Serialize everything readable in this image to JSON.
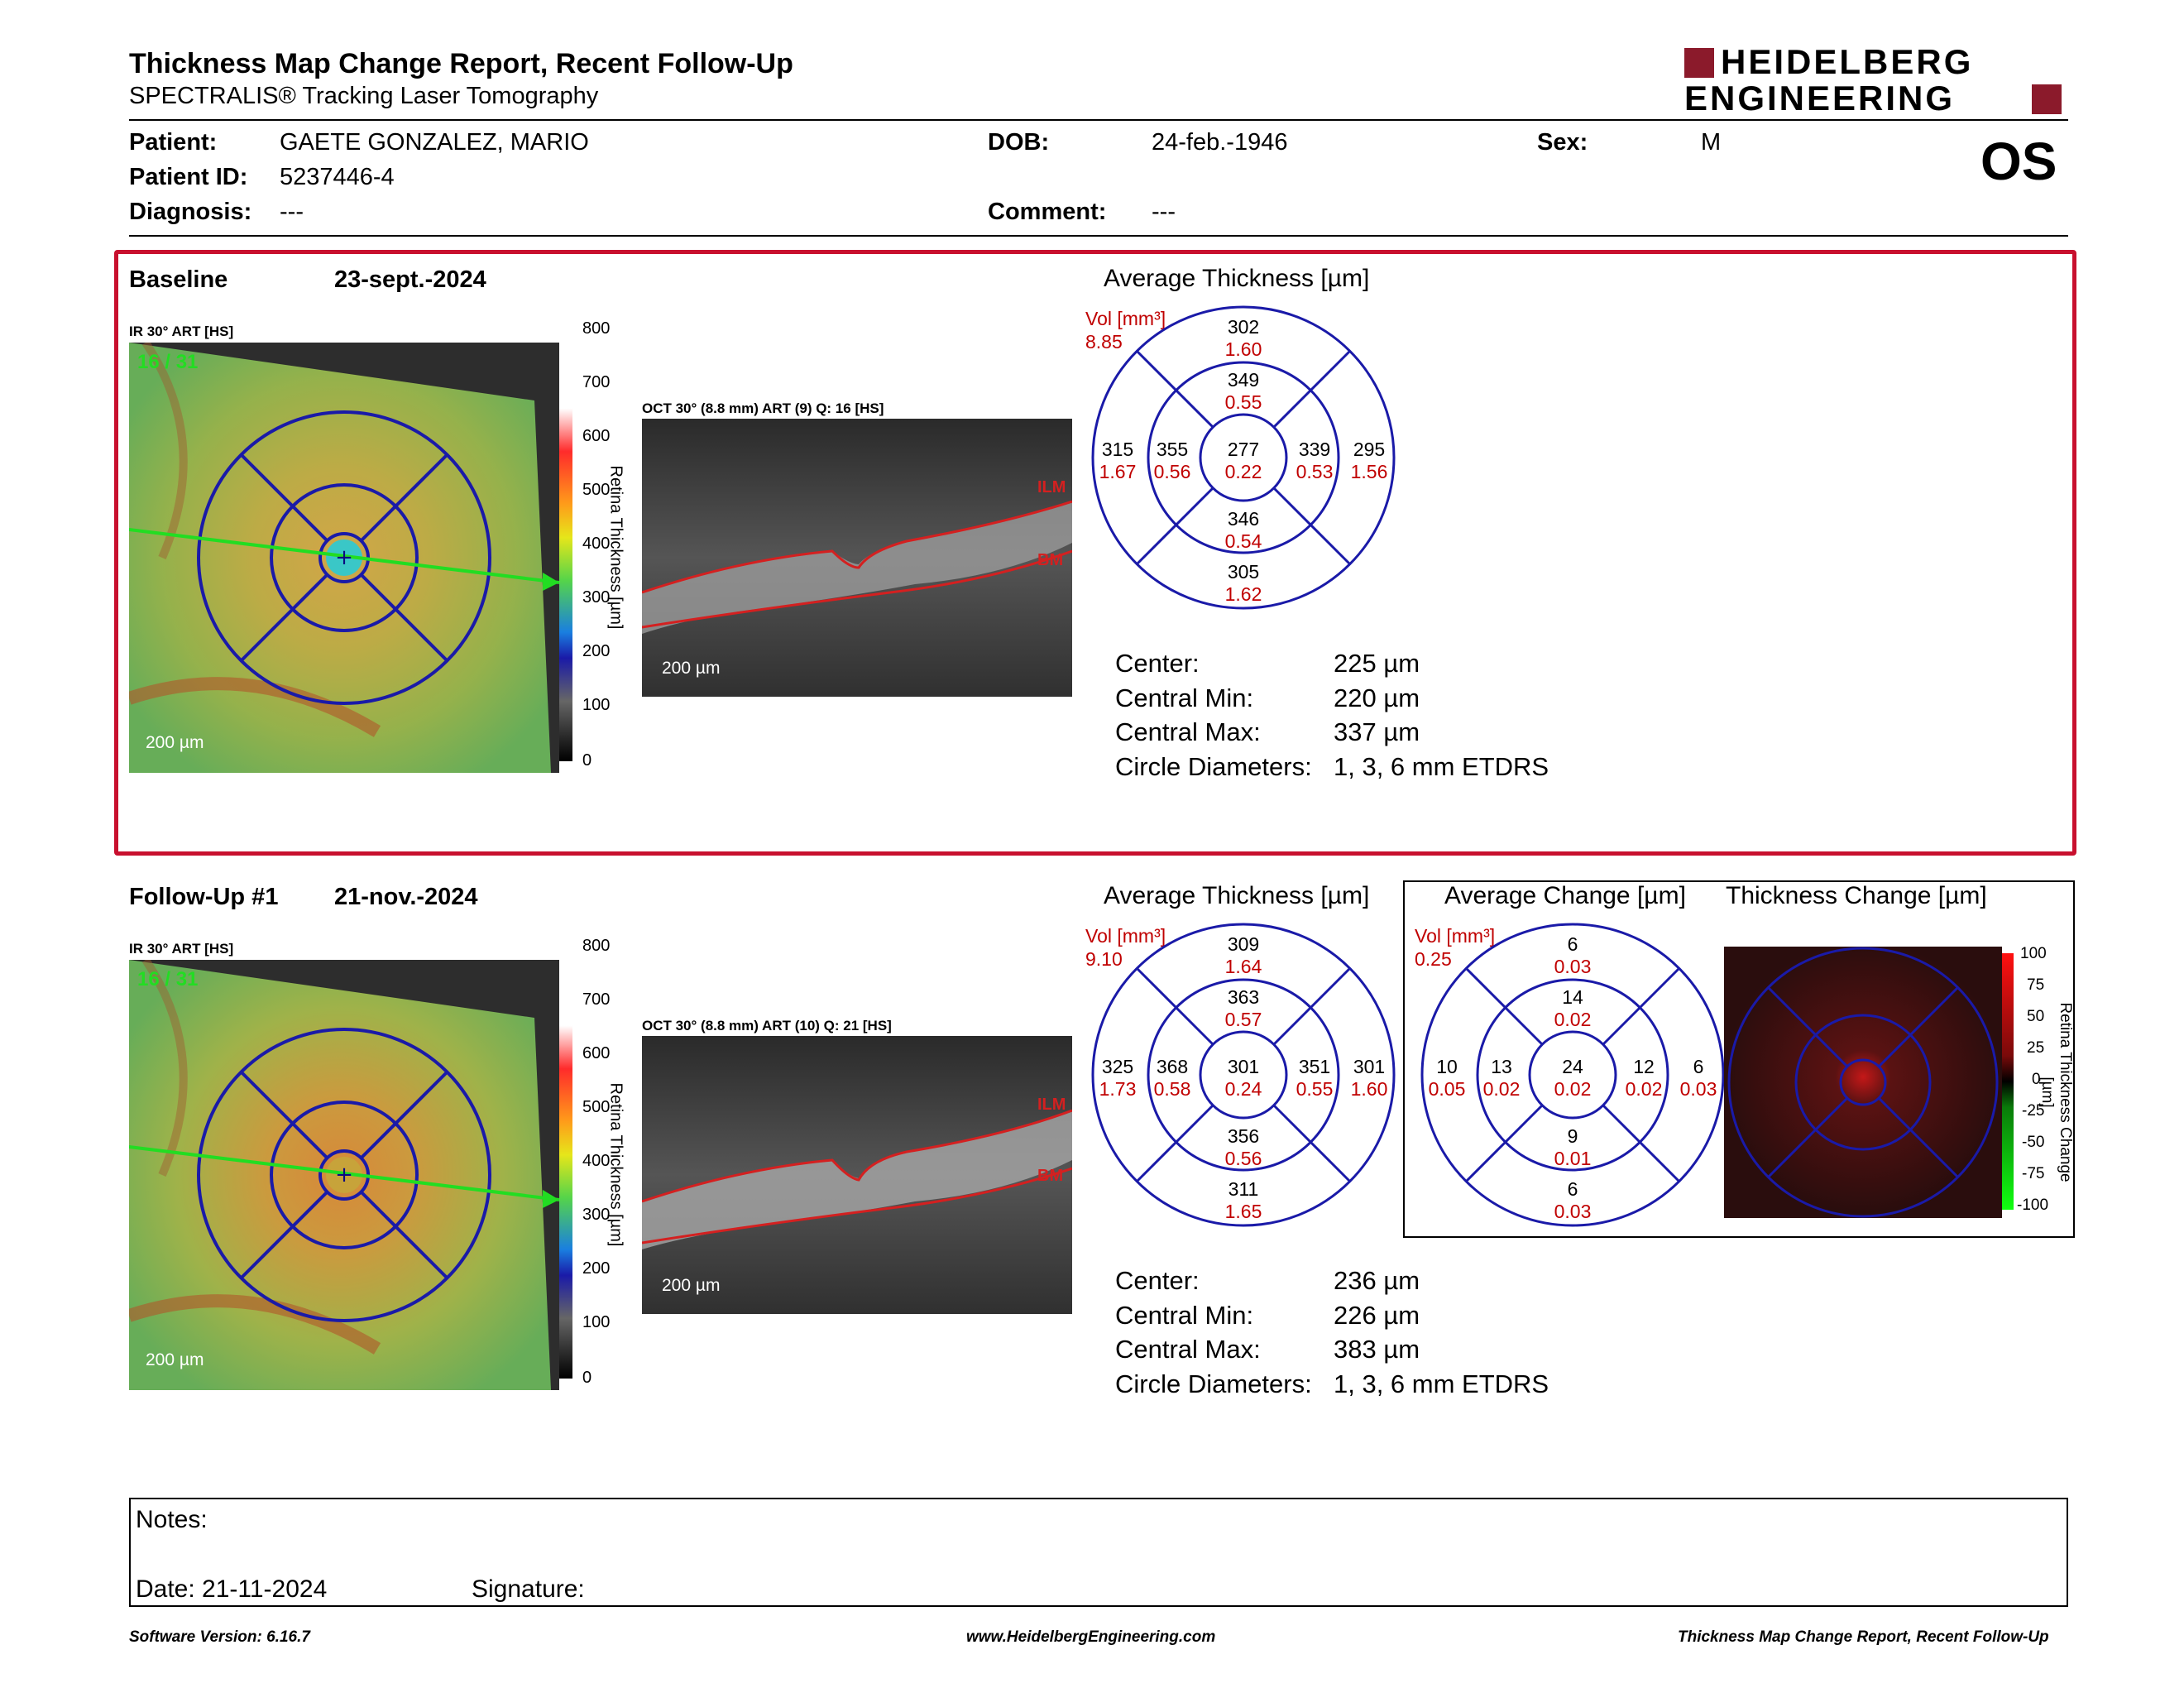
{
  "header": {
    "title": "Thickness Map Change Report, Recent Follow-Up",
    "subtitle": "SPECTRALIS® Tracking Laser Tomography",
    "logo_line1": "HEIDELBERG",
    "logo_line2": "ENGINEERING",
    "eye": "OS"
  },
  "patient": {
    "patient_label": "Patient:",
    "patient_value": "GAETE GONZALEZ, MARIO",
    "id_label": "Patient ID:",
    "id_value": "5237446-4",
    "diagnosis_label": "Diagnosis:",
    "diagnosis_value": "---",
    "dob_label": "DOB:",
    "dob_value": "24-feb.-1946",
    "comment_label": "Comment:",
    "comment_value": "---",
    "sex_label": "Sex:",
    "sex_value": "M"
  },
  "colors": {
    "frame_red": "#c8102e",
    "value_red": "#c00000",
    "grid_blue": "#1a1aa8",
    "logo_red": "#8b1a2b"
  },
  "baseline": {
    "label": "Baseline",
    "date": "23-sept.-2024",
    "ir_label": "IR 30° ART [HS]",
    "ir_overlay": "16 / 31",
    "scale": "200 µm",
    "colorbar_ticks": [
      "800",
      "700",
      "600",
      "500",
      "400",
      "300",
      "200",
      "100",
      "0"
    ],
    "colorbar_title": "Retina Thickness [µm]",
    "oct_label": "OCT 30° (8.8 mm) ART (9) Q: 16 [HS]",
    "oct_ilm": "ILM",
    "oct_bm": "BM",
    "oct_scale": "200 µm",
    "avg_title": "Average Thickness [µm]",
    "vol_label": "Vol [mm³]",
    "vol_value": "8.85",
    "grid": {
      "center": [
        "277",
        "0.22"
      ],
      "in_top": [
        "349",
        "0.55"
      ],
      "in_bottom": [
        "346",
        "0.54"
      ],
      "in_left": [
        "355",
        "0.56"
      ],
      "in_right": [
        "339",
        "0.53"
      ],
      "out_top": [
        "302",
        "1.60"
      ],
      "out_bottom": [
        "305",
        "1.62"
      ],
      "out_left": [
        "315",
        "1.67"
      ],
      "out_right": [
        "295",
        "1.56"
      ]
    },
    "stats": [
      {
        "label": "Center:",
        "value": "225 µm"
      },
      {
        "label": "Central Min:",
        "value": "220 µm"
      },
      {
        "label": "Central Max:",
        "value": "337 µm"
      },
      {
        "label": "Circle Diameters:",
        "value": "1, 3, 6 mm ETDRS"
      }
    ]
  },
  "followup": {
    "label": "Follow-Up #1",
    "date": "21-nov.-2024",
    "ir_label": "IR 30° ART [HS]",
    "ir_overlay": "16 / 31",
    "scale": "200 µm",
    "colorbar_ticks": [
      "800",
      "700",
      "600",
      "500",
      "400",
      "300",
      "200",
      "100",
      "0"
    ],
    "colorbar_title": "Retina Thickness [µm]",
    "oct_label": "OCT 30° (8.8 mm) ART (10) Q: 21 [HS]",
    "oct_ilm": "ILM",
    "oct_bm": "BM",
    "oct_scale": "200 µm",
    "avg_title": "Average Thickness [µm]",
    "vol_label": "Vol [mm³]",
    "vol_value": "9.10",
    "grid": {
      "center": [
        "301",
        "0.24"
      ],
      "in_top": [
        "363",
        "0.57"
      ],
      "in_bottom": [
        "356",
        "0.56"
      ],
      "in_left": [
        "368",
        "0.58"
      ],
      "in_right": [
        "351",
        "0.55"
      ],
      "out_top": [
        "309",
        "1.64"
      ],
      "out_bottom": [
        "311",
        "1.65"
      ],
      "out_left": [
        "325",
        "1.73"
      ],
      "out_right": [
        "301",
        "1.60"
      ]
    },
    "stats": [
      {
        "label": "Center:",
        "value": "236 µm"
      },
      {
        "label": "Central Min:",
        "value": "226 µm"
      },
      {
        "label": "Central Max:",
        "value": "383 µm"
      },
      {
        "label": "Circle Diameters:",
        "value": "1, 3, 6 mm ETDRS"
      }
    ],
    "change_title": "Average Change [µm]",
    "change_vol_label": "Vol [mm³]",
    "change_vol_value": "0.25",
    "change_grid": {
      "center": [
        "24",
        "0.02"
      ],
      "in_top": [
        "14",
        "0.02"
      ],
      "in_bottom": [
        "9",
        "0.01"
      ],
      "in_left": [
        "13",
        "0.02"
      ],
      "in_right": [
        "12",
        "0.02"
      ],
      "out_top": [
        "6",
        "0.03"
      ],
      "out_bottom": [
        "6",
        "0.03"
      ],
      "out_left": [
        "10",
        "0.05"
      ],
      "out_right": [
        "6",
        "0.03"
      ]
    },
    "thickness_change_title": "Thickness Change [µm]",
    "change_colorbar_ticks": [
      "100",
      "75",
      "50",
      "25",
      "0",
      "-25",
      "-50",
      "-75",
      "-100"
    ],
    "change_colorbar_title": "Retina Thickness Change [µm]"
  },
  "notes": {
    "notes_label": "Notes:",
    "date_label": "Date: 21-11-2024",
    "signature_label": "Signature:"
  },
  "footer": {
    "left": "Software Version: 6.16.7",
    "center": "www.HeidelbergEngineering.com",
    "right": "Thickness Map Change Report, Recent Follow-Up"
  }
}
